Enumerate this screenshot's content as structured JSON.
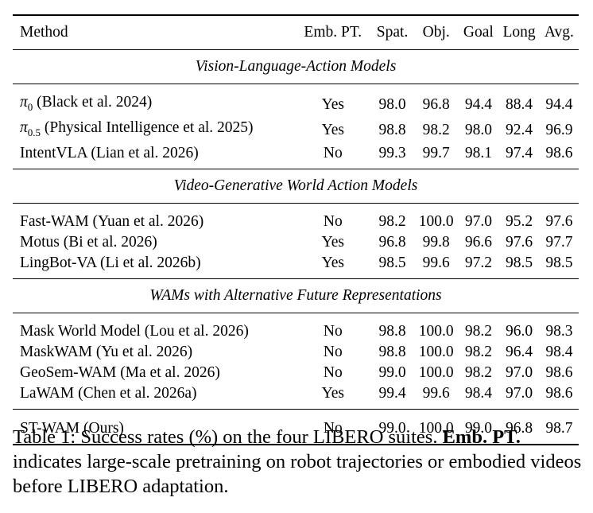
{
  "table": {
    "headers": {
      "method": "Method",
      "emb_pt": "Emb. PT.",
      "spat": "Spat.",
      "obj": "Obj.",
      "goal": "Goal",
      "long": "Long",
      "avg": "Avg."
    },
    "sections": [
      {
        "title": "Vision-Language-Action Models",
        "rows": [
          {
            "method": "π₀ (Black et al. 2024)",
            "emb": "Yes",
            "spat": "98.0",
            "obj": "96.8",
            "goal": "94.4",
            "long": "88.4",
            "avg": "94.4"
          },
          {
            "method": "π₀.₅ (Physical Intelligence et al. 2025)",
            "emb": "Yes",
            "spat": "98.8",
            "obj": "98.2",
            "goal": "98.0",
            "long": "92.4",
            "avg": "96.9"
          },
          {
            "method": "IntentVLA (Lian et al. 2026)",
            "emb": "No",
            "spat": "99.3",
            "obj": "99.7",
            "goal": "98.1",
            "long": "97.4",
            "avg": "98.6"
          }
        ]
      },
      {
        "title": "Video-Generative World Action Models",
        "rows": [
          {
            "method": "Fast-WAM (Yuan et al. 2026)",
            "emb": "No",
            "spat": "98.2",
            "obj": "100.0",
            "goal": "97.0",
            "long": "95.2",
            "avg": "97.6"
          },
          {
            "method": "Motus (Bi et al. 2026)",
            "emb": "Yes",
            "spat": "96.8",
            "obj": "99.8",
            "goal": "96.6",
            "long": "97.6",
            "avg": "97.7"
          },
          {
            "method": "LingBot-VA (Li et al. 2026b)",
            "emb": "Yes",
            "spat": "98.5",
            "obj": "99.6",
            "goal": "97.2",
            "long": "98.5",
            "avg": "98.5"
          }
        ]
      },
      {
        "title": "WAMs with Alternative Future Representations",
        "rows": [
          {
            "method": "Mask World Model (Lou et al. 2026)",
            "emb": "No",
            "spat": "98.8",
            "obj": "100.0",
            "goal": "98.2",
            "long": "96.0",
            "avg": "98.3"
          },
          {
            "method": "MaskWAM (Yu et al. 2026)",
            "emb": "No",
            "spat": "98.8",
            "obj": "100.0",
            "goal": "98.2",
            "long": "96.4",
            "avg": "98.4"
          },
          {
            "method": "GeoSem-WAM (Ma et al. 2026)",
            "emb": "No",
            "spat": "99.0",
            "obj": "100.0",
            "goal": "98.2",
            "long": "97.0",
            "avg": "98.6"
          },
          {
            "method": "LaWAM (Chen et al. 2026a)",
            "emb": "Yes",
            "spat": "99.4",
            "obj": "99.6",
            "goal": "98.4",
            "long": "97.0",
            "avg": "98.6"
          }
        ]
      }
    ],
    "ours": {
      "method": "ST-WAM (Ours)",
      "emb": "No",
      "spat": "99.0",
      "obj": "100.0",
      "goal": "99.0",
      "long": "96.8",
      "avg": "98.7"
    }
  },
  "caption": {
    "label": "Table 1:",
    "text1": "Success rates (%) on the four LIBERO suites.",
    "bold_term": "Emb. PT.",
    "text2": "indicates large-scale pretraining on robot trajectories or embodied videos before LIBERO adaptation."
  }
}
